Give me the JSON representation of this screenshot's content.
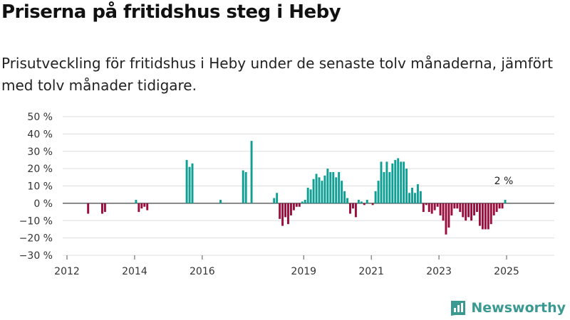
{
  "title": "Priserna på fritidshus steg i Heby",
  "subtitle": "Prisutveckling för fritidshus i Heby under de senaste tolv månaderna, jämfört med tolv månader tidigare.",
  "brand": {
    "name": "Newsworthy",
    "icon": "newsworthy-logo-icon"
  },
  "colors": {
    "positive": "#0f9f94",
    "negative": "#9a0e3e",
    "zero_line": "#444444",
    "grid": "#dddddd"
  },
  "chart_data": {
    "type": "bar",
    "title": "Priserna på fritidshus steg i Heby",
    "xlabel": "",
    "ylabel": "",
    "ylim": [
      -30,
      50
    ],
    "y_ticks": [
      50,
      40,
      30,
      20,
      10,
      0,
      -10,
      -20,
      -30
    ],
    "y_tick_labels": [
      "50 %",
      "40 %",
      "30 %",
      "20 %",
      "10 %",
      "0 %",
      "−10 %",
      "−20 %",
      "−30 %"
    ],
    "x_ticks": [
      2012,
      2014,
      2016,
      2019,
      2021,
      2023,
      2025
    ],
    "x_tick_labels": [
      "2012",
      "2014",
      "2016",
      "2019",
      "2021",
      "2023",
      "2025"
    ],
    "start_date": "2012-01",
    "unit": "%",
    "last_value_label": "2 %",
    "series": [
      {
        "name": "Prisutveckling fritidshus Heby",
        "values": [
          null,
          null,
          null,
          null,
          null,
          null,
          null,
          -6,
          null,
          null,
          null,
          null,
          -6,
          -5,
          null,
          null,
          null,
          null,
          null,
          null,
          null,
          null,
          null,
          null,
          2,
          -5,
          -3,
          -2,
          -4,
          null,
          null,
          null,
          null,
          null,
          null,
          null,
          null,
          null,
          null,
          null,
          null,
          null,
          25,
          21,
          23,
          null,
          null,
          null,
          null,
          null,
          null,
          null,
          null,
          null,
          2,
          null,
          null,
          null,
          null,
          null,
          null,
          null,
          19,
          18,
          null,
          36,
          null,
          null,
          null,
          null,
          null,
          null,
          null,
          3,
          6,
          -9,
          -13,
          -8,
          -12,
          -7,
          -4,
          -2,
          -2,
          1,
          2,
          9,
          8,
          14,
          17,
          15,
          13,
          16,
          20,
          18,
          18,
          15,
          18,
          13,
          7,
          3,
          -6,
          -3,
          -8,
          2,
          1,
          -1,
          2,
          null,
          -1,
          7,
          13,
          24,
          18,
          24,
          18,
          23,
          25,
          26,
          24,
          24,
          20,
          6,
          9,
          6,
          11,
          7,
          -5,
          -1,
          -5,
          -6,
          -4,
          -2,
          -7,
          -10,
          -18,
          -14,
          -7,
          -3,
          -3,
          -5,
          -8,
          -10,
          -8,
          -10,
          -7,
          -5,
          -13,
          -15,
          -15,
          -15,
          -12,
          -7,
          -5,
          -3,
          -3,
          2
        ]
      }
    ]
  }
}
